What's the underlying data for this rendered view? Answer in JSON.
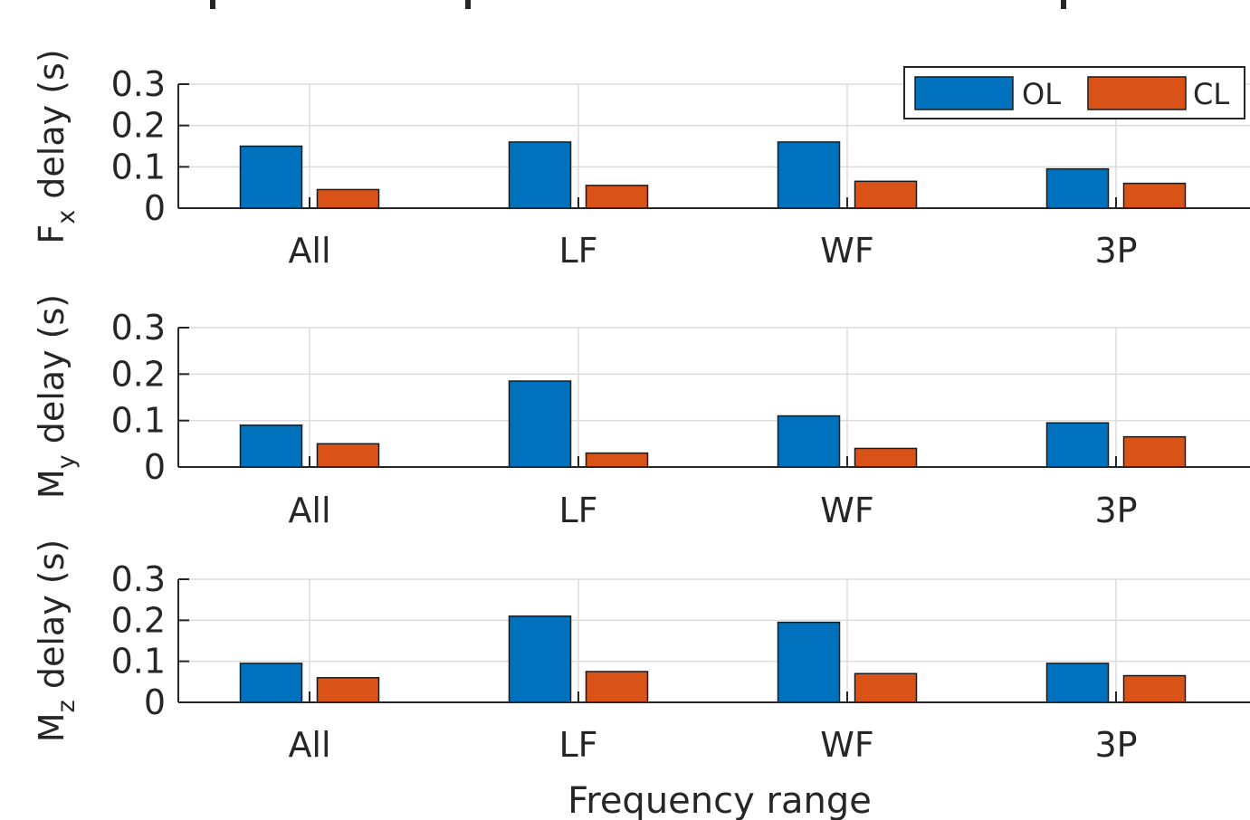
{
  "chart_data": {
    "type": "bar",
    "categories": [
      "All",
      "LF",
      "WF",
      "3P"
    ],
    "xlabel": "Frequency range",
    "legend": {
      "placement": "top-right",
      "entries": [
        "OL",
        "CL"
      ]
    },
    "colors": {
      "OL": "#0072BD",
      "CL": "#D95319"
    },
    "grid": true,
    "panels": [
      {
        "ylabel": {
          "main": "F",
          "sub": "x",
          "rest": " delay (s)"
        },
        "ylim": [
          0,
          0.3
        ],
        "yticks": [
          "0",
          "0.1",
          "0.2",
          "0.3"
        ],
        "series": [
          {
            "name": "OL",
            "values": [
              0.15,
              0.16,
              0.16,
              0.095
            ]
          },
          {
            "name": "CL",
            "values": [
              0.045,
              0.055,
              0.065,
              0.06
            ]
          }
        ]
      },
      {
        "ylabel": {
          "main": "M",
          "sub": "y",
          "rest": " delay (s)"
        },
        "ylim": [
          0,
          0.3
        ],
        "yticks": [
          "0",
          "0.1",
          "0.2",
          "0.3"
        ],
        "series": [
          {
            "name": "OL",
            "values": [
              0.09,
              0.185,
              0.11,
              0.095
            ]
          },
          {
            "name": "CL",
            "values": [
              0.05,
              0.03,
              0.04,
              0.065
            ]
          }
        ]
      },
      {
        "ylabel": {
          "main": "M",
          "sub": "z",
          "rest": " delay (s)"
        },
        "ylim": [
          0,
          0.3
        ],
        "yticks": [
          "0",
          "0.1",
          "0.2",
          "0.3"
        ],
        "series": [
          {
            "name": "OL",
            "values": [
              0.095,
              0.21,
              0.195,
              0.095
            ]
          },
          {
            "name": "CL",
            "values": [
              0.06,
              0.075,
              0.07,
              0.065
            ]
          }
        ]
      }
    ]
  }
}
